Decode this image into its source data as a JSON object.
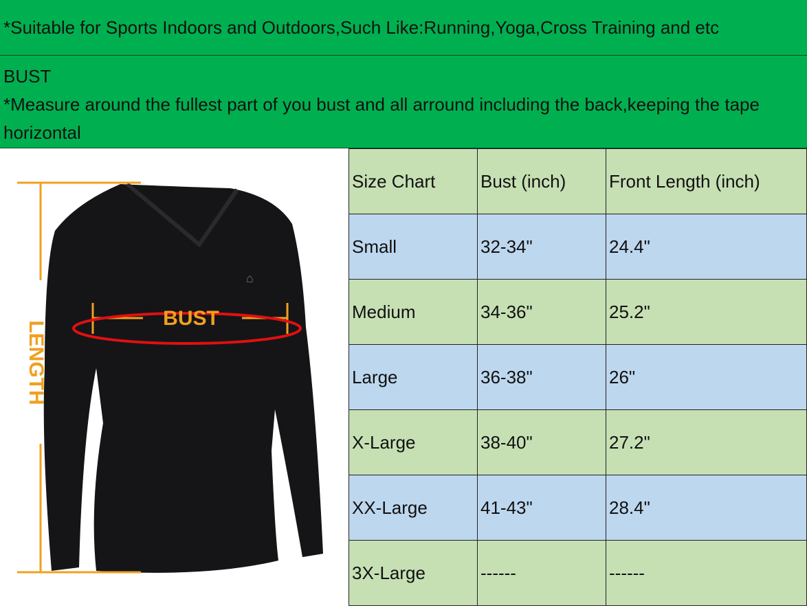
{
  "banner": "*Suitable for Sports Indoors and Outdoors,Such Like:Running,Yoga,Cross Training and etc",
  "bust_section": {
    "title": "BUST",
    "instruction": "*Measure around the fullest part of you bust and all arround including the back,keeping the tape horizontal"
  },
  "illustration": {
    "bust_label": "BUST",
    "length_label": "LENGTH",
    "accent": "#f0a020",
    "tape_color": "#e01010"
  },
  "colors": {
    "green": "#00b050",
    "row_green": "#c6e0b4",
    "row_blue": "#bdd7ee"
  },
  "table": {
    "headers": [
      "Size Chart",
      "Bust (inch)",
      "Front Length (inch)"
    ],
    "rows": [
      [
        "Small",
        "32-34\"",
        "24.4\""
      ],
      [
        "Medium",
        "34-36\"",
        "25.2\""
      ],
      [
        "Large",
        "36-38\"",
        "26\""
      ],
      [
        "X-Large",
        "38-40\"",
        "27.2\""
      ],
      [
        "XX-Large",
        "41-43\"",
        "28.4\""
      ],
      [
        "3X-Large",
        "------",
        "------"
      ]
    ]
  }
}
